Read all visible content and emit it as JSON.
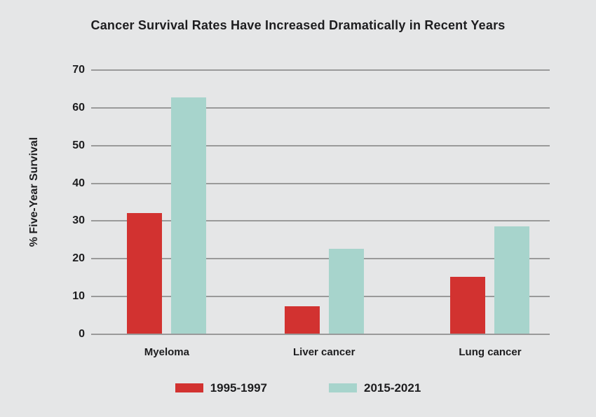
{
  "page": {
    "background_color": "#e5e6e7",
    "text_color": "#1d1d1f"
  },
  "chart_data": {
    "type": "bar",
    "title": "Cancer Survival Rates Have Increased Dramatically in Recent Years",
    "ylabel": "% Five-Year Survival",
    "xlabel": "",
    "categories": [
      "Myeloma",
      "Liver cancer",
      "Lung cancer"
    ],
    "series": [
      {
        "name": "1995-1997",
        "color": "#d23230",
        "values": [
          32,
          7.2,
          15
        ]
      },
      {
        "name": "2015-2021",
        "color": "#a7d4cc",
        "values": [
          62.5,
          22.5,
          28.5
        ]
      }
    ],
    "ylim": [
      0,
      70
    ],
    "yticks": [
      0,
      10,
      20,
      30,
      40,
      50,
      60,
      70
    ],
    "grid": "horizontal",
    "gridline_color": "#9a9a9a",
    "legend_position": "bottom"
  }
}
